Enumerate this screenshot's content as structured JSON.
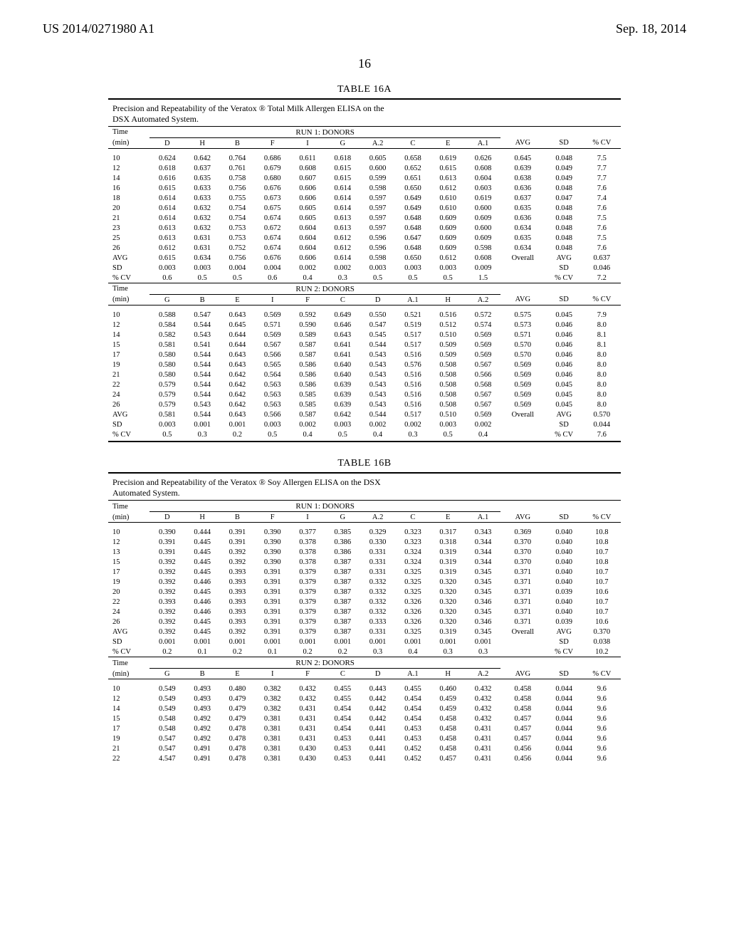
{
  "header": {
    "left": "US 2014/0271980 A1",
    "right": "Sep. 18, 2014"
  },
  "page_number": "16",
  "table16A": {
    "title": "TABLE 16A",
    "caption_line1": "Precision and Repeatability of the Veratox ® Total Milk Allergen ELISA on the",
    "caption_line2": "DSX Automated System.",
    "time_label": "Time",
    "min_label": "(min)",
    "run1_label": "RUN 1: DONORS",
    "run2_label": "RUN 2: DONORS",
    "cols_run1": [
      "D",
      "H",
      "B",
      "F",
      "I",
      "G",
      "A.2",
      "C",
      "E",
      "A.1",
      "AVG",
      "SD",
      "% CV"
    ],
    "cols_run2": [
      "G",
      "B",
      "E",
      "I",
      "F",
      "C",
      "D",
      "A.1",
      "H",
      "A.2",
      "AVG",
      "SD",
      "% CV"
    ],
    "rows_run1": [
      [
        "10",
        "0.624",
        "0.642",
        "0.764",
        "0.686",
        "0.611",
        "0.618",
        "0.605",
        "0.658",
        "0.619",
        "0.626",
        "0.645",
        "0.048",
        "7.5"
      ],
      [
        "12",
        "0.618",
        "0.637",
        "0.761",
        "0.679",
        "0.608",
        "0.615",
        "0.600",
        "0.652",
        "0.615",
        "0.608",
        "0.639",
        "0.049",
        "7.7"
      ],
      [
        "14",
        "0.616",
        "0.635",
        "0.758",
        "0.680",
        "0.607",
        "0.615",
        "0.599",
        "0.651",
        "0.613",
        "0.604",
        "0.638",
        "0.049",
        "7.7"
      ],
      [
        "16",
        "0.615",
        "0.633",
        "0.756",
        "0.676",
        "0.606",
        "0.614",
        "0.598",
        "0.650",
        "0.612",
        "0.603",
        "0.636",
        "0.048",
        "7.6"
      ],
      [
        "18",
        "0.614",
        "0.633",
        "0.755",
        "0.673",
        "0.606",
        "0.614",
        "0.597",
        "0.649",
        "0.610",
        "0.619",
        "0.637",
        "0.047",
        "7.4"
      ],
      [
        "20",
        "0.614",
        "0.632",
        "0.754",
        "0.675",
        "0.605",
        "0.614",
        "0.597",
        "0.649",
        "0.610",
        "0.600",
        "0.635",
        "0.048",
        "7.6"
      ],
      [
        "21",
        "0.614",
        "0.632",
        "0.754",
        "0.674",
        "0.605",
        "0.613",
        "0.597",
        "0.648",
        "0.609",
        "0.609",
        "0.636",
        "0.048",
        "7.5"
      ],
      [
        "23",
        "0.613",
        "0.632",
        "0.753",
        "0.672",
        "0.604",
        "0.613",
        "0.597",
        "0.648",
        "0.609",
        "0.600",
        "0.634",
        "0.048",
        "7.6"
      ],
      [
        "25",
        "0.613",
        "0.631",
        "0.753",
        "0.674",
        "0.604",
        "0.612",
        "0.596",
        "0.647",
        "0.609",
        "0.609",
        "0.635",
        "0.048",
        "7.5"
      ],
      [
        "26",
        "0.612",
        "0.631",
        "0.752",
        "0.674",
        "0.604",
        "0.612",
        "0.596",
        "0.648",
        "0.609",
        "0.598",
        "0.634",
        "0.048",
        "7.6"
      ],
      [
        "AVG",
        "0.615",
        "0.634",
        "0.756",
        "0.676",
        "0.606",
        "0.614",
        "0.598",
        "0.650",
        "0.612",
        "0.608",
        "Overall",
        "AVG",
        "0.637"
      ],
      [
        "SD",
        "0.003",
        "0.003",
        "0.004",
        "0.004",
        "0.002",
        "0.002",
        "0.003",
        "0.003",
        "0.003",
        "0.009",
        "",
        "SD",
        "0.046"
      ],
      [
        "% CV",
        "0.6",
        "0.5",
        "0.5",
        "0.6",
        "0.4",
        "0.3",
        "0.5",
        "0.5",
        "0.5",
        "1.5",
        "",
        "% CV",
        "7.2"
      ]
    ],
    "rows_run2": [
      [
        "10",
        "0.588",
        "0.547",
        "0.643",
        "0.569",
        "0.592",
        "0.649",
        "0.550",
        "0.521",
        "0.516",
        "0.572",
        "0.575",
        "0.045",
        "7.9"
      ],
      [
        "12",
        "0.584",
        "0.544",
        "0.645",
        "0.571",
        "0.590",
        "0.646",
        "0.547",
        "0.519",
        "0.512",
        "0.574",
        "0.573",
        "0.046",
        "8.0"
      ],
      [
        "14",
        "0.582",
        "0.543",
        "0.644",
        "0.569",
        "0.589",
        "0.643",
        "0.545",
        "0.517",
        "0.510",
        "0.569",
        "0.571",
        "0.046",
        "8.1"
      ],
      [
        "15",
        "0.581",
        "0.541",
        "0.644",
        "0.567",
        "0.587",
        "0.641",
        "0.544",
        "0.517",
        "0.509",
        "0.569",
        "0.570",
        "0.046",
        "8.1"
      ],
      [
        "17",
        "0.580",
        "0.544",
        "0.643",
        "0.566",
        "0.587",
        "0.641",
        "0.543",
        "0.516",
        "0.509",
        "0.569",
        "0.570",
        "0.046",
        "8.0"
      ],
      [
        "19",
        "0.580",
        "0.544",
        "0.643",
        "0.565",
        "0.586",
        "0.640",
        "0.543",
        "0.576",
        "0.508",
        "0.567",
        "0.569",
        "0.046",
        "8.0"
      ],
      [
        "21",
        "0.580",
        "0.544",
        "0.642",
        "0.564",
        "0.586",
        "0.640",
        "0.543",
        "0.516",
        "0.508",
        "0.566",
        "0.569",
        "0.046",
        "8.0"
      ],
      [
        "22",
        "0.579",
        "0.544",
        "0.642",
        "0.563",
        "0.586",
        "0.639",
        "0.543",
        "0.516",
        "0.508",
        "0.568",
        "0.569",
        "0.045",
        "8.0"
      ],
      [
        "24",
        "0.579",
        "0.544",
        "0.642",
        "0.563",
        "0.585",
        "0.639",
        "0.543",
        "0.516",
        "0.508",
        "0.567",
        "0.569",
        "0.045",
        "8.0"
      ],
      [
        "26",
        "0.579",
        "0.543",
        "0.642",
        "0.563",
        "0.585",
        "0.639",
        "0.543",
        "0.516",
        "0.508",
        "0.567",
        "0.569",
        "0.045",
        "8.0"
      ],
      [
        "AVG",
        "0.581",
        "0.544",
        "0.643",
        "0.566",
        "0.587",
        "0.642",
        "0.544",
        "0.517",
        "0.510",
        "0.569",
        "Overall",
        "AVG",
        "0.570"
      ],
      [
        "SD",
        "0.003",
        "0.001",
        "0.001",
        "0.003",
        "0.002",
        "0.003",
        "0.002",
        "0.002",
        "0.003",
        "0.002",
        "",
        "SD",
        "0.044"
      ],
      [
        "% CV",
        "0.5",
        "0.3",
        "0.2",
        "0.5",
        "0.4",
        "0.5",
        "0.4",
        "0.3",
        "0.5",
        "0.4",
        "",
        "% CV",
        "7.6"
      ]
    ]
  },
  "table16B": {
    "title": "TABLE 16B",
    "caption_line1": "Precision and Repeatability of the Veratox ® Soy Allergen ELISA on the DSX",
    "caption_line2": "Automated System.",
    "time_label": "Time",
    "min_label": "(min)",
    "run1_label": "RUN 1: DONORS",
    "run2_label": "RUN 2: DONORS",
    "cols_run1": [
      "D",
      "H",
      "B",
      "F",
      "I",
      "G",
      "A.2",
      "C",
      "E",
      "A.1",
      "AVG",
      "SD",
      "% CV"
    ],
    "cols_run2": [
      "G",
      "B",
      "E",
      "I",
      "F",
      "C",
      "D",
      "A.1",
      "H",
      "A.2",
      "AVG",
      "SD",
      "% CV"
    ],
    "rows_run1": [
      [
        "10",
        "0.390",
        "0.444",
        "0.391",
        "0.390",
        "0.377",
        "0.385",
        "0.329",
        "0.323",
        "0.317",
        "0.343",
        "0.369",
        "0.040",
        "10.8"
      ],
      [
        "12",
        "0.391",
        "0.445",
        "0.391",
        "0.390",
        "0.378",
        "0.386",
        "0.330",
        "0.323",
        "0.318",
        "0.344",
        "0.370",
        "0.040",
        "10.8"
      ],
      [
        "13",
        "0.391",
        "0.445",
        "0.392",
        "0.390",
        "0.378",
        "0.386",
        "0.331",
        "0.324",
        "0.319",
        "0.344",
        "0.370",
        "0.040",
        "10.7"
      ],
      [
        "15",
        "0.392",
        "0.445",
        "0.392",
        "0.390",
        "0.378",
        "0.387",
        "0.331",
        "0.324",
        "0.319",
        "0.344",
        "0.370",
        "0.040",
        "10.8"
      ],
      [
        "17",
        "0.392",
        "0.445",
        "0.393",
        "0.391",
        "0.379",
        "0.387",
        "0.331",
        "0.325",
        "0.319",
        "0.345",
        "0.371",
        "0.040",
        "10.7"
      ],
      [
        "19",
        "0.392",
        "0.446",
        "0.393",
        "0.391",
        "0.379",
        "0.387",
        "0.332",
        "0.325",
        "0.320",
        "0.345",
        "0.371",
        "0.040",
        "10.7"
      ],
      [
        "20",
        "0.392",
        "0.445",
        "0.393",
        "0.391",
        "0.379",
        "0.387",
        "0.332",
        "0.325",
        "0.320",
        "0.345",
        "0.371",
        "0.039",
        "10.6"
      ],
      [
        "22",
        "0.393",
        "0.446",
        "0.393",
        "0.391",
        "0.379",
        "0.387",
        "0.332",
        "0.326",
        "0.320",
        "0.346",
        "0.371",
        "0.040",
        "10.7"
      ],
      [
        "24",
        "0.392",
        "0.446",
        "0.393",
        "0.391",
        "0.379",
        "0.387",
        "0.332",
        "0.326",
        "0.320",
        "0.345",
        "0.371",
        "0.040",
        "10.7"
      ],
      [
        "26",
        "0.392",
        "0.445",
        "0.393",
        "0.391",
        "0.379",
        "0.387",
        "0.333",
        "0.326",
        "0.320",
        "0.346",
        "0.371",
        "0.039",
        "10.6"
      ],
      [
        "AVG",
        "0.392",
        "0.445",
        "0.392",
        "0.391",
        "0.379",
        "0.387",
        "0.331",
        "0.325",
        "0.319",
        "0.345",
        "Overall",
        "AVG",
        "0.370"
      ],
      [
        "SD",
        "0.001",
        "0.001",
        "0.001",
        "0.001",
        "0.001",
        "0.001",
        "0.001",
        "0.001",
        "0.001",
        "0.001",
        "",
        "SD",
        "0.038"
      ],
      [
        "% CV",
        "0.2",
        "0.1",
        "0.2",
        "0.1",
        "0.2",
        "0.2",
        "0.3",
        "0.4",
        "0.3",
        "0.3",
        "",
        "% CV",
        "10.2"
      ]
    ],
    "rows_run2": [
      [
        "10",
        "0.549",
        "0.493",
        "0.480",
        "0.382",
        "0.432",
        "0.455",
        "0.443",
        "0.455",
        "0.460",
        "0.432",
        "0.458",
        "0.044",
        "9.6"
      ],
      [
        "12",
        "0.549",
        "0.493",
        "0.479",
        "0.382",
        "0.432",
        "0.455",
        "0.442",
        "0.454",
        "0.459",
        "0.432",
        "0.458",
        "0.044",
        "9.6"
      ],
      [
        "14",
        "0.549",
        "0.493",
        "0.479",
        "0.382",
        "0.431",
        "0.454",
        "0.442",
        "0.454",
        "0.459",
        "0.432",
        "0.458",
        "0.044",
        "9.6"
      ],
      [
        "15",
        "0.548",
        "0.492",
        "0.479",
        "0.381",
        "0.431",
        "0.454",
        "0.442",
        "0.454",
        "0.458",
        "0.432",
        "0.457",
        "0.044",
        "9.6"
      ],
      [
        "17",
        "0.548",
        "0.492",
        "0.478",
        "0.381",
        "0.431",
        "0.454",
        "0.441",
        "0.453",
        "0.458",
        "0.431",
        "0.457",
        "0.044",
        "9.6"
      ],
      [
        "19",
        "0.547",
        "0.492",
        "0.478",
        "0.381",
        "0.431",
        "0.453",
        "0.441",
        "0.453",
        "0.458",
        "0.431",
        "0.457",
        "0.044",
        "9.6"
      ],
      [
        "21",
        "0.547",
        "0.491",
        "0.478",
        "0.381",
        "0.430",
        "0.453",
        "0.441",
        "0.452",
        "0.458",
        "0.431",
        "0.456",
        "0.044",
        "9.6"
      ],
      [
        "22",
        "4.547",
        "0.491",
        "0.478",
        "0.381",
        "0.430",
        "0.453",
        "0.441",
        "0.452",
        "0.457",
        "0.431",
        "0.456",
        "0.044",
        "9.6"
      ]
    ]
  }
}
